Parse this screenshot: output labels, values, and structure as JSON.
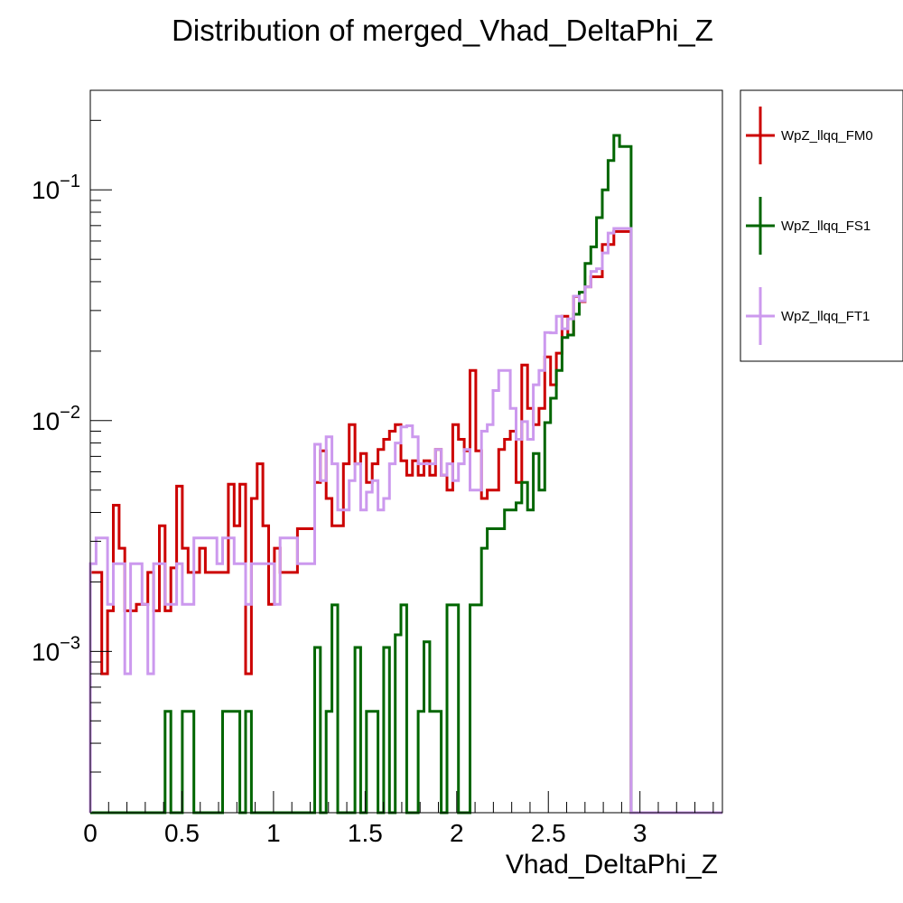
{
  "chart_data": {
    "type": "histogram-step",
    "title": "Distribution of merged_Vhad_DeltaPhi_Z",
    "xlabel": "Vhad_DeltaPhi_Z",
    "ylabel": "",
    "xlim": [
      0,
      3.45
    ],
    "ylim": [
      0.0002,
      0.27
    ],
    "yscale": "log",
    "bin_width": 0.0314,
    "x_ticks": [
      "0",
      "0.5",
      "1",
      "1.5",
      "2",
      "2.5",
      "3"
    ],
    "x_tick_values": [
      0,
      0.5,
      1,
      1.5,
      2,
      2.5,
      3
    ],
    "y_ticks": [
      {
        "base": "10",
        "exp": "−3",
        "value": 0.001
      },
      {
        "base": "10",
        "exp": "−2",
        "value": 0.01
      },
      {
        "base": "10",
        "exp": "−1",
        "value": 0.1
      }
    ],
    "legend_position": "top-right-outside",
    "series": [
      {
        "name": "WpZ_llqq_FM0",
        "color": "#cc0000",
        "values": [
          0.0022,
          0.0022,
          0.0008,
          0.0015,
          0.0043,
          0.0028,
          0.0015,
          0.0015,
          0.0016,
          0.0016,
          0.0022,
          0.0015,
          0.0035,
          0.0015,
          0.0023,
          0.0052,
          0.0028,
          0.0022,
          0.0022,
          0.0028,
          0.0022,
          0.0022,
          0.0022,
          0.0022,
          0.0053,
          0.0035,
          0.0053,
          0.0008,
          0.0046,
          0.0065,
          0.0035,
          0.0016,
          0.0028,
          0.0022,
          0.0022,
          0.0022,
          0.0034,
          0.0034,
          0.0034,
          0.0054,
          0.0074,
          0.0046,
          0.0035,
          0.0035,
          0.0065,
          0.0096,
          0.0065,
          0.0072,
          0.0054,
          0.0065,
          0.0075,
          0.0083,
          0.009,
          0.0096,
          0.0067,
          0.0058,
          0.0067,
          0.0058,
          0.0067,
          0.0058,
          0.0075,
          0.0058,
          0.005,
          0.0096,
          0.0083,
          0.0074,
          0.0165,
          0.0074,
          0.0046,
          0.005,
          0.005,
          0.0075,
          0.0083,
          0.009,
          0.0054,
          0.0174,
          0.0113,
          0.0096,
          0.0113,
          0.0189,
          0.0143,
          0.0196,
          0.0283,
          0.0235,
          0.0345,
          0.0328,
          0.038,
          0.042,
          0.042,
          0.058,
          0.058,
          0.066,
          0.066,
          0.066
        ]
      },
      {
        "name": "WpZ_llqq_FS1",
        "color": "#006600",
        "values": [
          0.0002,
          0.0002,
          0.0002,
          0.0002,
          0.0002,
          0.0002,
          0.0002,
          0.0002,
          0.0002,
          0.0002,
          0.0002,
          0.0002,
          0.0002,
          0.00055,
          0.0002,
          0.0002,
          0.00055,
          0.00055,
          0.0002,
          0.0002,
          0.0002,
          0.0002,
          0.0002,
          0.00055,
          0.00055,
          0.00055,
          0.0002,
          0.00055,
          0.0002,
          0.0002,
          0.0002,
          0.0002,
          0.0002,
          0.0002,
          0.0002,
          0.0002,
          0.0002,
          0.0002,
          0.0002,
          0.00104,
          0.0002,
          0.00055,
          0.00159,
          0.0002,
          0.0002,
          0.0002,
          0.00104,
          0.0002,
          0.00055,
          0.00055,
          0.0002,
          0.00104,
          0.0002,
          0.00118,
          0.00159,
          0.0002,
          0.0002,
          0.00055,
          0.0011,
          0.00055,
          0.00055,
          0.0002,
          0.00159,
          0.00159,
          0.0002,
          0.0002,
          0.00159,
          0.00159,
          0.0028,
          0.0034,
          0.0034,
          0.0034,
          0.0041,
          0.0041,
          0.0044,
          0.0054,
          0.0041,
          0.0072,
          0.005,
          0.0098,
          0.0125,
          0.0165,
          0.0229,
          0.0235,
          0.0289,
          0.036,
          0.048,
          0.0566,
          0.0758,
          0.1,
          0.134,
          0.172,
          0.154,
          0.154
        ]
      },
      {
        "name": "WpZ_llqq_FT1",
        "color": "#cc99ee",
        "values": [
          0.0024,
          0.0031,
          0.0031,
          0.0016,
          0.0024,
          0.0024,
          0.0008,
          0.0024,
          0.0024,
          0.0016,
          0.0008,
          0.0024,
          0.0024,
          0.0016,
          0.0016,
          0.0024,
          0.0016,
          0.0016,
          0.0031,
          0.0031,
          0.0031,
          0.0031,
          0.0024,
          0.0031,
          0.0031,
          0.0024,
          0.0024,
          0.0016,
          0.0024,
          0.0024,
          0.0024,
          0.0024,
          0.0016,
          0.0031,
          0.0031,
          0.0031,
          0.0024,
          0.0024,
          0.0024,
          0.0079,
          0.0055,
          0.0085,
          0.0065,
          0.0041,
          0.0041,
          0.0055,
          0.0065,
          0.0041,
          0.0049,
          0.0055,
          0.0041,
          0.0046,
          0.0065,
          0.008,
          0.0094,
          0.0095,
          0.0085,
          0.0065,
          0.0065,
          0.0065,
          0.0075,
          0.0058,
          0.0065,
          0.0055,
          0.0065,
          0.0075,
          0.005,
          0.005,
          0.009,
          0.0096,
          0.0135,
          0.0165,
          0.0165,
          0.0113,
          0.0083,
          0.0099,
          0.0083,
          0.0143,
          0.0165,
          0.0241,
          0.024,
          0.0283,
          0.025,
          0.0276,
          0.0346,
          0.033,
          0.038,
          0.0443,
          0.0455,
          0.0533,
          0.065,
          0.068,
          0.068,
          0.068
        ]
      }
    ]
  }
}
